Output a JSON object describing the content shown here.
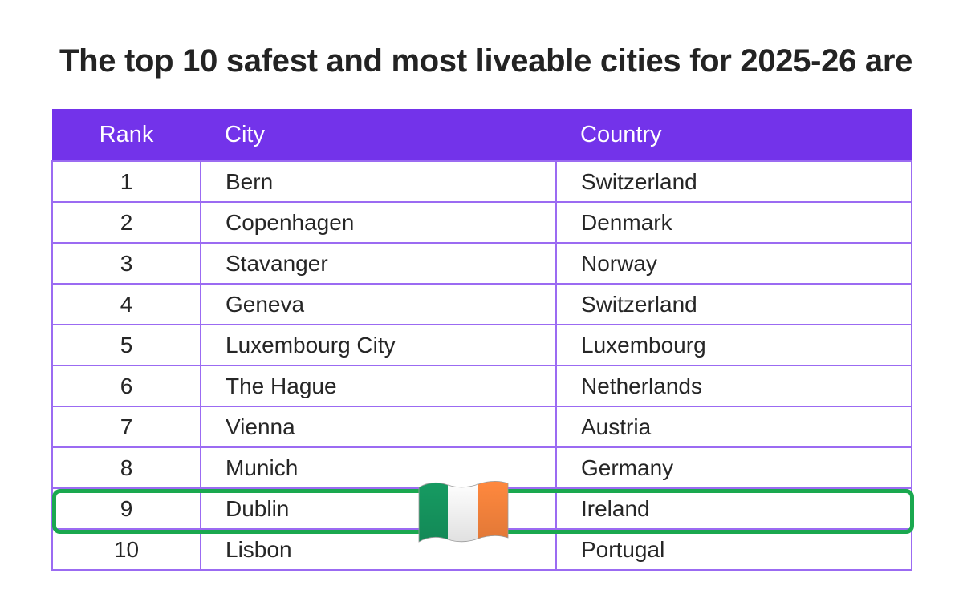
{
  "title": "The top 10 safest and most liveable cities for 2025-26 are",
  "table": {
    "headers": {
      "rank": "Rank",
      "city": "City",
      "country": "Country"
    },
    "rows": [
      {
        "rank": "1",
        "city": "Bern",
        "country": "Switzerland"
      },
      {
        "rank": "2",
        "city": "Copenhagen",
        "country": "Denmark"
      },
      {
        "rank": "3",
        "city": "Stavanger",
        "country": "Norway"
      },
      {
        "rank": "4",
        "city": "Geneva",
        "country": "Switzerland"
      },
      {
        "rank": "5",
        "city": "Luxembourg City",
        "country": "Luxembourg"
      },
      {
        "rank": "6",
        "city": "The Hague",
        "country": "Netherlands"
      },
      {
        "rank": "7",
        "city": "Vienna",
        "country": "Austria"
      },
      {
        "rank": "8",
        "city": "Munich",
        "country": "Germany"
      },
      {
        "rank": "9",
        "city": "Dublin",
        "country": "Ireland"
      },
      {
        "rank": "10",
        "city": "Lisbon",
        "country": "Portugal"
      }
    ]
  },
  "highlight": {
    "row": "9",
    "flag_icon": "ireland-flag-icon"
  },
  "colors": {
    "header_bg": "#7333ea",
    "grid_line": "#9b6bf2",
    "highlight_border": "#1aa84f",
    "flag_green": "#169b62",
    "flag_white": "#ffffff",
    "flag_orange": "#ff883e"
  }
}
